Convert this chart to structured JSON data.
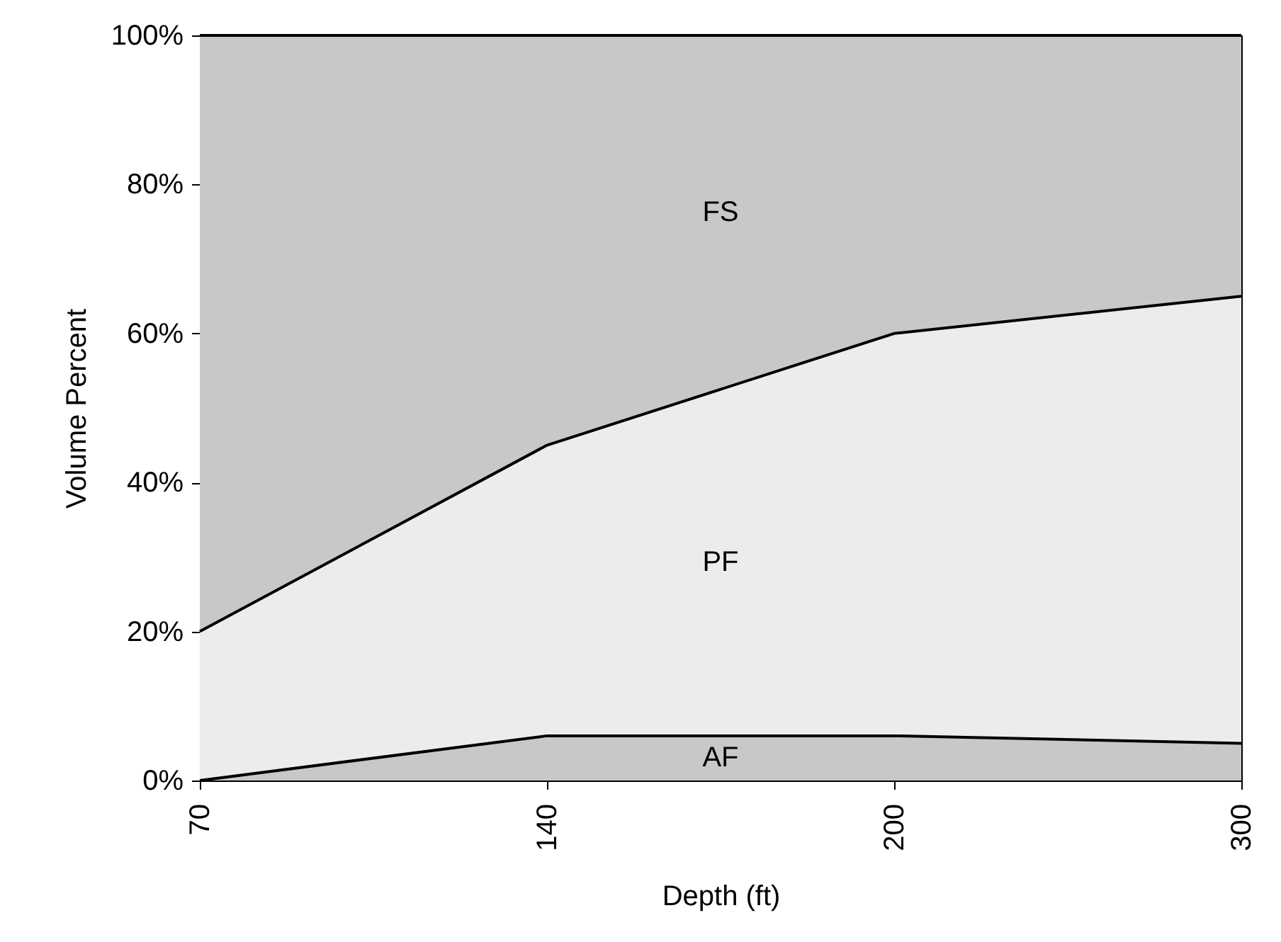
{
  "chart_data": {
    "type": "area",
    "stacked": true,
    "xlabel": "Depth (ft)",
    "ylabel": "Volume Percent",
    "categories": [
      "70",
      "140",
      "200",
      "300"
    ],
    "series": [
      {
        "name": "AF",
        "color": "#c8c8c8",
        "values": [
          0,
          6,
          6,
          5
        ]
      },
      {
        "name": "PF",
        "color": "#ececec",
        "values": [
          20,
          39,
          54,
          60
        ]
      },
      {
        "name": "FS",
        "color": "#c8c8c8",
        "values": [
          80,
          55,
          40,
          35
        ]
      }
    ],
    "ylim": [
      0,
      100
    ],
    "yticks": [
      {
        "value": 0,
        "label": "0%"
      },
      {
        "value": 20,
        "label": "20%"
      },
      {
        "value": 40,
        "label": "40%"
      },
      {
        "value": 60,
        "label": "60%"
      },
      {
        "value": 80,
        "label": "80%"
      },
      {
        "value": 100,
        "label": "100%"
      }
    ],
    "grid": false,
    "legend": false
  }
}
